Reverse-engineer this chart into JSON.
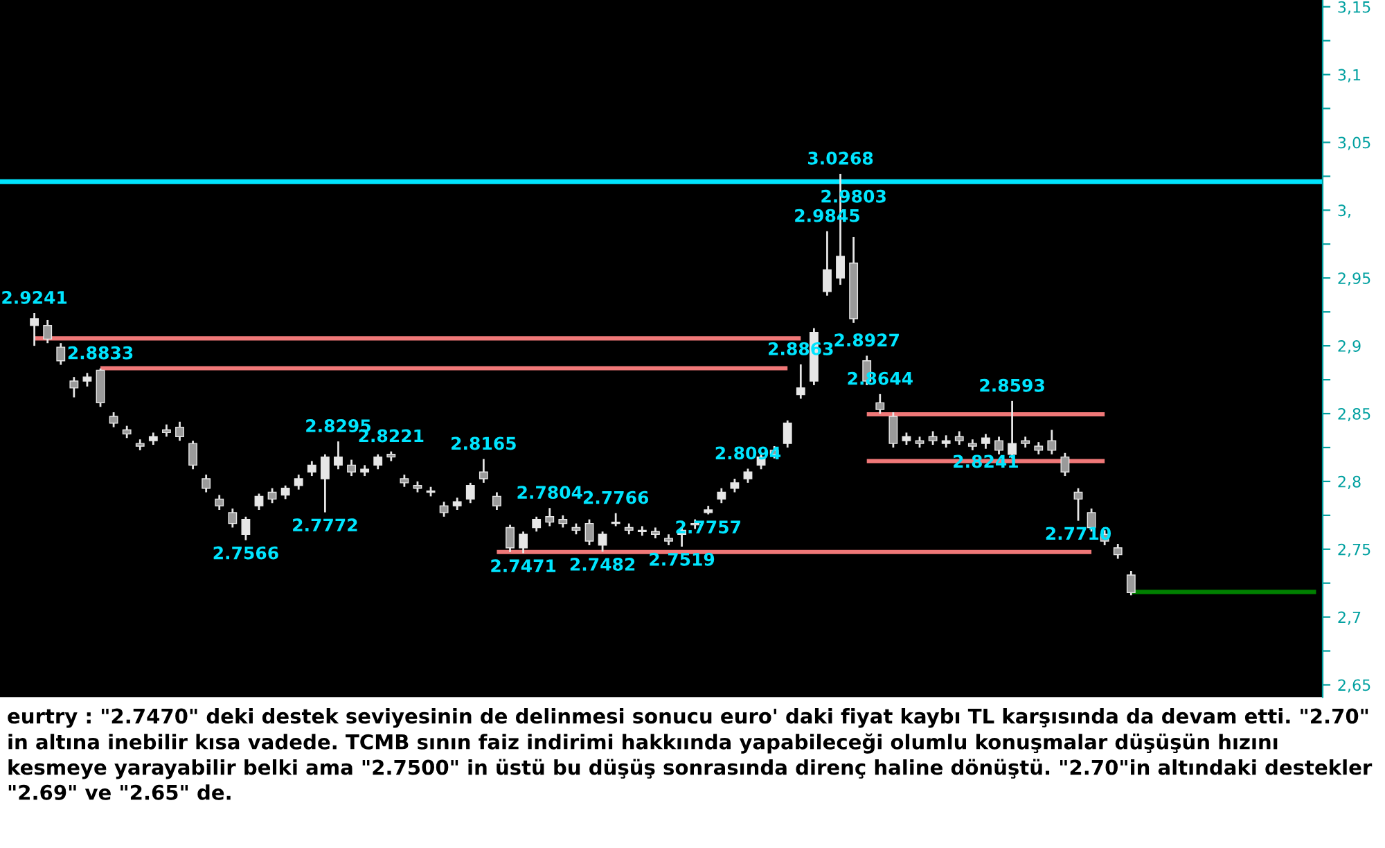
{
  "chart_data": {
    "type": "candlestick",
    "categories": [
      null,
      null,
      null,
      null,
      null,
      null,
      null,
      null,
      null,
      null,
      null,
      null,
      null,
      null,
      null,
      null,
      null,
      null,
      null,
      null,
      null,
      null,
      null,
      null,
      null,
      null,
      null,
      null,
      null,
      null,
      null,
      null,
      null,
      null,
      null,
      null,
      null,
      null,
      null,
      null,
      null,
      null,
      null,
      null,
      null,
      null,
      null,
      null,
      null,
      null,
      null,
      null,
      null,
      null,
      null,
      null,
      null,
      null,
      null,
      null,
      null,
      null,
      null,
      null,
      null,
      null,
      null,
      null,
      null,
      null,
      null,
      null,
      null,
      null,
      null,
      null,
      null,
      null,
      null,
      null,
      null,
      null,
      null,
      null,
      null,
      null,
      null,
      null,
      null,
      null,
      null,
      null,
      null,
      null,
      null,
      null,
      null,
      null
    ],
    "color": "#e6e6e6",
    "ohlc": [
      [
        2.915,
        2.9241,
        2.9,
        2.92
      ],
      [
        2.915,
        2.919,
        2.902,
        2.905
      ],
      [
        2.899,
        2.902,
        2.886,
        2.889
      ],
      [
        2.874,
        2.877,
        2.862,
        2.869
      ],
      [
        2.874,
        2.88,
        2.87,
        2.877
      ],
      [
        2.882,
        2.8833,
        2.855,
        2.858
      ],
      [
        2.848,
        2.851,
        2.84,
        2.843
      ],
      [
        2.838,
        2.841,
        2.832,
        2.835
      ],
      [
        2.828,
        2.831,
        2.823,
        2.826
      ],
      [
        2.83,
        2.836,
        2.827,
        2.833
      ],
      [
        2.838,
        2.842,
        2.833,
        2.836
      ],
      [
        2.84,
        2.844,
        2.83,
        2.833
      ],
      [
        2.828,
        2.83,
        2.809,
        2.812
      ],
      [
        2.802,
        2.805,
        2.792,
        2.795
      ],
      [
        2.787,
        2.79,
        2.779,
        2.782
      ],
      [
        2.777,
        2.78,
        2.766,
        2.769
      ],
      [
        2.761,
        2.774,
        2.7566,
        2.772
      ],
      [
        2.782,
        2.791,
        2.779,
        2.789
      ],
      [
        2.792,
        2.795,
        2.784,
        2.787
      ],
      [
        2.79,
        2.797,
        2.787,
        2.795
      ],
      [
        2.797,
        2.805,
        2.794,
        2.802
      ],
      [
        2.807,
        2.815,
        2.804,
        2.812
      ],
      [
        2.802,
        2.82,
        2.7772,
        2.818
      ],
      [
        2.812,
        2.8295,
        2.809,
        2.818
      ],
      [
        2.812,
        2.816,
        2.804,
        2.807
      ],
      [
        2.807,
        2.812,
        2.804,
        2.809
      ],
      [
        2.812,
        2.82,
        2.809,
        2.818
      ],
      [
        2.82,
        2.8221,
        2.815,
        2.818
      ],
      [
        2.802,
        2.805,
        2.796,
        2.799
      ],
      [
        2.797,
        2.8,
        2.792,
        2.795
      ],
      [
        2.792,
        2.796,
        2.789,
        2.793
      ],
      [
        2.782,
        2.785,
        2.774,
        2.777
      ],
      [
        2.782,
        2.788,
        2.779,
        2.785
      ],
      [
        2.787,
        2.799,
        2.784,
        2.797
      ],
      [
        2.807,
        2.8165,
        2.799,
        2.802
      ],
      [
        2.789,
        2.792,
        2.779,
        2.782
      ],
      [
        2.766,
        2.768,
        2.748,
        2.751
      ],
      [
        2.751,
        2.763,
        2.7471,
        2.761
      ],
      [
        2.766,
        2.774,
        2.763,
        2.772
      ],
      [
        2.774,
        2.7804,
        2.767,
        2.77
      ],
      [
        2.772,
        2.775,
        2.766,
        2.769
      ],
      [
        2.766,
        2.769,
        2.761,
        2.764
      ],
      [
        2.769,
        2.772,
        2.753,
        2.756
      ],
      [
        2.753,
        2.763,
        2.7482,
        2.761
      ],
      [
        2.769,
        2.7766,
        2.767,
        2.77
      ],
      [
        2.766,
        2.769,
        2.761,
        2.764
      ],
      [
        2.763,
        2.767,
        2.76,
        2.764
      ],
      [
        2.763,
        2.766,
        2.758,
        2.761
      ],
      [
        2.758,
        2.761,
        2.753,
        2.756
      ],
      [
        2.761,
        2.766,
        2.7519,
        2.764
      ],
      [
        2.769,
        2.772,
        2.765,
        2.768
      ],
      [
        2.777,
        2.782,
        2.7757,
        2.779
      ],
      [
        2.787,
        2.795,
        2.784,
        2.792
      ],
      [
        2.795,
        2.802,
        2.792,
        2.799
      ],
      [
        2.802,
        2.8094,
        2.799,
        2.807
      ],
      [
        2.812,
        2.821,
        2.809,
        2.818
      ],
      [
        2.823,
        2.826,
        2.817,
        2.82
      ],
      [
        2.828,
        2.845,
        2.825,
        2.843
      ],
      [
        2.864,
        2.8863,
        2.861,
        2.869
      ],
      [
        2.874,
        2.913,
        2.871,
        2.91
      ],
      [
        2.94,
        2.9845,
        2.937,
        2.956
      ],
      [
        2.95,
        3.0268,
        2.945,
        2.966
      ],
      [
        2.961,
        2.9803,
        2.917,
        2.92
      ],
      [
        2.889,
        2.8927,
        2.871,
        2.874
      ],
      [
        2.858,
        2.8644,
        2.85,
        2.853
      ],
      [
        2.848,
        2.851,
        2.825,
        2.828
      ],
      [
        2.83,
        2.836,
        2.827,
        2.833
      ],
      [
        2.83,
        2.833,
        2.825,
        2.828
      ],
      [
        2.833,
        2.837,
        2.827,
        2.83
      ],
      [
        2.828,
        2.834,
        2.825,
        2.83
      ],
      [
        2.833,
        2.837,
        2.827,
        2.83
      ],
      [
        2.828,
        2.831,
        2.823,
        2.826
      ],
      [
        2.828,
        2.835,
        2.8241,
        2.832
      ],
      [
        2.83,
        2.833,
        2.82,
        2.823
      ],
      [
        2.82,
        2.8593,
        2.817,
        2.828
      ],
      [
        2.83,
        2.833,
        2.825,
        2.828
      ],
      [
        2.826,
        2.829,
        2.82,
        2.823
      ],
      [
        2.83,
        2.838,
        2.82,
        2.823
      ],
      [
        2.818,
        2.821,
        2.804,
        2.807
      ],
      [
        2.792,
        2.795,
        2.771,
        2.787
      ],
      [
        2.777,
        2.78,
        2.763,
        2.766
      ],
      [
        2.761,
        2.764,
        2.753,
        2.756
      ],
      [
        2.751,
        2.754,
        2.743,
        2.746
      ],
      [
        2.731,
        2.734,
        2.716,
        2.718
      ],
      null,
      null,
      null,
      null,
      null,
      null,
      null,
      null,
      null,
      null,
      null,
      null,
      null,
      null
    ],
    "series": [
      {
        "type": "line",
        "color": "#f07878",
        "values": [
          2.9055,
          2.9055,
          2.9055,
          2.9055,
          2.9055,
          2.9055,
          2.9055,
          2.9055,
          2.9055,
          2.9055,
          2.9055,
          2.9055,
          2.9055,
          2.9055,
          2.9055,
          2.9055,
          2.9055,
          2.9055,
          2.9055,
          2.9055,
          2.9055,
          2.9055,
          2.9055,
          2.9055,
          2.9055,
          2.9055,
          2.9055,
          2.9055,
          2.9055,
          2.9055,
          2.9055,
          2.9055,
          2.9055,
          2.9055,
          2.9055,
          2.9055,
          2.9055,
          2.9055,
          2.9055,
          2.9055,
          2.9055,
          2.9055,
          2.9055,
          2.9055,
          2.9055,
          2.9055,
          2.9055,
          2.9055,
          2.9055,
          2.9055,
          2.9055,
          2.9055,
          2.9055,
          2.9055,
          2.9055,
          2.9055,
          2.9055,
          2.9055,
          2.9055,
          null,
          null,
          null,
          null,
          null,
          null,
          null,
          null,
          null,
          null,
          null,
          null,
          null,
          null,
          null,
          null,
          null,
          null,
          null,
          null,
          null,
          null,
          null,
          null,
          null,
          null,
          null,
          null,
          null,
          null,
          null,
          null,
          null,
          null,
          null,
          null,
          null,
          null,
          null
        ]
      },
      {
        "type": "line",
        "color": "#f07878",
        "values": [
          null,
          null,
          null,
          null,
          null,
          2.8835,
          2.8835,
          2.8835,
          2.8835,
          2.8835,
          2.8835,
          2.8835,
          2.8835,
          2.8835,
          2.8835,
          2.8835,
          2.8835,
          2.8835,
          2.8835,
          2.8835,
          2.8835,
          2.8835,
          2.8835,
          2.8835,
          2.8835,
          2.8835,
          2.8835,
          2.8835,
          2.8835,
          2.8835,
          2.8835,
          2.8835,
          2.8835,
          2.8835,
          2.8835,
          2.8835,
          2.8835,
          2.8835,
          2.8835,
          2.8835,
          2.8835,
          2.8835,
          2.8835,
          2.8835,
          2.8835,
          2.8835,
          2.8835,
          2.8835,
          2.8835,
          2.8835,
          2.8835,
          2.8835,
          2.8835,
          2.8835,
          2.8835,
          2.8835,
          2.8835,
          2.8835,
          null,
          null,
          null,
          null,
          null,
          null,
          null,
          null,
          null,
          null,
          null,
          null,
          null,
          null,
          null,
          null,
          null,
          null,
          null,
          null,
          null,
          null,
          null,
          null,
          null,
          null,
          null,
          null,
          null,
          null,
          null,
          null,
          null,
          null,
          null,
          null,
          null,
          null,
          null,
          null
        ]
      },
      {
        "type": "line",
        "color": "#f07878",
        "values": [
          null,
          null,
          null,
          null,
          null,
          null,
          null,
          null,
          null,
          null,
          null,
          null,
          null,
          null,
          null,
          null,
          null,
          null,
          null,
          null,
          null,
          null,
          null,
          null,
          null,
          null,
          null,
          null,
          null,
          null,
          null,
          null,
          null,
          null,
          null,
          null,
          null,
          null,
          null,
          null,
          null,
          null,
          null,
          null,
          null,
          null,
          null,
          null,
          null,
          null,
          null,
          null,
          null,
          null,
          null,
          null,
          null,
          null,
          null,
          null,
          null,
          null,
          null,
          2.8495,
          2.8495,
          2.8495,
          2.8495,
          2.8495,
          2.8495,
          2.8495,
          2.8495,
          2.8495,
          2.8495,
          2.8495,
          2.8495,
          2.8495,
          2.8495,
          2.8495,
          2.8495,
          2.8495,
          2.8495,
          2.8495,
          null,
          null,
          null,
          null,
          null,
          null,
          null,
          null,
          null,
          null,
          null,
          null,
          null,
          null,
          null,
          null
        ]
      },
      {
        "type": "line",
        "color": "#f07878",
        "values": [
          null,
          null,
          null,
          null,
          null,
          null,
          null,
          null,
          null,
          null,
          null,
          null,
          null,
          null,
          null,
          null,
          null,
          null,
          null,
          null,
          null,
          null,
          null,
          null,
          null,
          null,
          null,
          null,
          null,
          null,
          null,
          null,
          null,
          null,
          null,
          null,
          null,
          null,
          null,
          null,
          null,
          null,
          null,
          null,
          null,
          null,
          null,
          null,
          null,
          null,
          null,
          null,
          null,
          null,
          null,
          null,
          null,
          null,
          null,
          null,
          null,
          null,
          null,
          2.815,
          2.815,
          2.815,
          2.815,
          2.815,
          2.815,
          2.815,
          2.815,
          2.815,
          2.815,
          2.815,
          2.815,
          2.815,
          2.815,
          2.815,
          2.815,
          2.815,
          2.815,
          2.815,
          null,
          null,
          null,
          null,
          null,
          null,
          null,
          null,
          null,
          null,
          null,
          null,
          null,
          null,
          null,
          null
        ]
      },
      {
        "type": "line",
        "color": "#f07878",
        "values": [
          null,
          null,
          null,
          null,
          null,
          null,
          null,
          null,
          null,
          null,
          null,
          null,
          null,
          null,
          null,
          null,
          null,
          null,
          null,
          null,
          null,
          null,
          null,
          null,
          null,
          null,
          null,
          null,
          null,
          null,
          null,
          null,
          null,
          null,
          null,
          2.748,
          2.748,
          2.748,
          2.748,
          2.748,
          2.748,
          2.748,
          2.748,
          2.748,
          2.748,
          2.748,
          2.748,
          2.748,
          2.748,
          2.748,
          2.748,
          2.748,
          2.748,
          2.748,
          2.748,
          2.748,
          2.748,
          2.748,
          2.748,
          2.748,
          2.748,
          2.748,
          2.748,
          2.748,
          2.748,
          2.748,
          2.748,
          2.748,
          2.748,
          2.748,
          2.748,
          2.748,
          2.748,
          2.748,
          2.748,
          2.748,
          2.748,
          2.748,
          2.748,
          2.748,
          2.748,
          null,
          null,
          null,
          null,
          null,
          null,
          null,
          null,
          null,
          null,
          null,
          null,
          null,
          null,
          null,
          null,
          null
        ]
      },
      {
        "type": "line",
        "color": "#008000",
        "values": [
          null,
          null,
          null,
          null,
          null,
          null,
          null,
          null,
          null,
          null,
          null,
          null,
          null,
          null,
          null,
          null,
          null,
          null,
          null,
          null,
          null,
          null,
          null,
          null,
          null,
          null,
          null,
          null,
          null,
          null,
          null,
          null,
          null,
          null,
          null,
          null,
          null,
          null,
          null,
          null,
          null,
          null,
          null,
          null,
          null,
          null,
          null,
          null,
          null,
          null,
          null,
          null,
          null,
          null,
          null,
          null,
          null,
          null,
          null,
          null,
          null,
          null,
          null,
          null,
          null,
          null,
          null,
          null,
          null,
          null,
          null,
          null,
          null,
          null,
          null,
          null,
          null,
          null,
          null,
          null,
          null,
          null,
          null,
          2.7185,
          2.7185,
          2.7185,
          2.7185,
          2.7185,
          2.7185,
          2.7185,
          2.7185,
          2.7185,
          2.7185,
          2.7185,
          2.7185,
          2.7185,
          2.7185,
          2.7185
        ]
      }
    ],
    "ref_lines": [
      {
        "axis": "y",
        "value": 3.021,
        "color": "#00e5ff"
      }
    ],
    "ylim": [
      2.641,
      3.155
    ],
    "yticks": [
      {
        "value": 2.65,
        "label": "2,65"
      },
      {
        "value": 2.675,
        "label": null
      },
      {
        "value": 2.7,
        "label": "2,7"
      },
      {
        "value": 2.725,
        "label": null
      },
      {
        "value": 2.75,
        "label": "2,75"
      },
      {
        "value": 2.775,
        "label": null
      },
      {
        "value": 2.8,
        "label": "2,8"
      },
      {
        "value": 2.825,
        "label": null
      },
      {
        "value": 2.85,
        "label": "2,85"
      },
      {
        "value": 2.875,
        "label": null
      },
      {
        "value": 2.9,
        "label": "2,9"
      },
      {
        "value": 2.925,
        "label": null
      },
      {
        "value": 2.95,
        "label": "2,95"
      },
      {
        "value": 2.975,
        "label": null
      },
      {
        "value": 3.0,
        "label": "3,"
      },
      {
        "value": 3.025,
        "label": null
      },
      {
        "value": 3.05,
        "label": "3,05"
      },
      {
        "value": 3.075,
        "label": null
      },
      {
        "value": 3.1,
        "label": "3,1"
      },
      {
        "value": 3.125,
        "label": null
      },
      {
        "value": 3.15,
        "label": "3,15"
      }
    ],
    "tick_labels": "y",
    "annotations": [
      {
        "text": "2.9241",
        "y": 2.9241
      },
      {
        "text": "2.8833",
        "y": 2.8833
      },
      {
        "text": "2.7566",
        "y": 2.7566
      },
      {
        "text": "2.7772",
        "y": 2.7772
      },
      {
        "text": "2.8295",
        "y": 2.8295
      },
      {
        "text": "2.8221",
        "y": 2.8221
      },
      {
        "text": "2.8165",
        "y": 2.8165
      },
      {
        "text": "2.7471",
        "y": 2.7471
      },
      {
        "text": "2.7804",
        "y": 2.7804
      },
      {
        "text": "2.7482",
        "y": 2.7482
      },
      {
        "text": "2.7766",
        "y": 2.7766
      },
      {
        "text": "2.7519",
        "y": 2.7519
      },
      {
        "text": "2.7757",
        "y": 2.7757
      },
      {
        "text": "2.8094",
        "y": 2.8094
      },
      {
        "text": "2.8863",
        "y": 2.8863
      },
      {
        "text": "2.9845",
        "y": 2.9845
      },
      {
        "text": "3.0268",
        "y": 3.0268
      },
      {
        "text": "2.9803",
        "y": 2.9803
      },
      {
        "text": "2.8927",
        "y": 2.8927
      },
      {
        "text": "2.8644",
        "y": 2.8644
      },
      {
        "text": "2.8241",
        "y": 2.8241
      },
      {
        "text": "2.8593",
        "y": 2.8593
      },
      {
        "text": "2.7710",
        "y": 2.771
      },
      "eurtry : \"2.7470\" deki destek seviyesinin de delinmesi sonucu euro' daki fiyat kaybı TL karşısında da devam etti. \"2.70\" in altına inebilir kısa vadede. TCMB sının faiz indirimi hakkıında yapabileceği olumlu konuşmalar düşüşün hızını kesmeye yarayabilir belki ama \"2.7500\" in üstü bu düşüş sonrasında direnç haline dönüştü. \"2.70\"in altındaki destekler \"2.69\" ve \"2.65\" de."
    ]
  }
}
